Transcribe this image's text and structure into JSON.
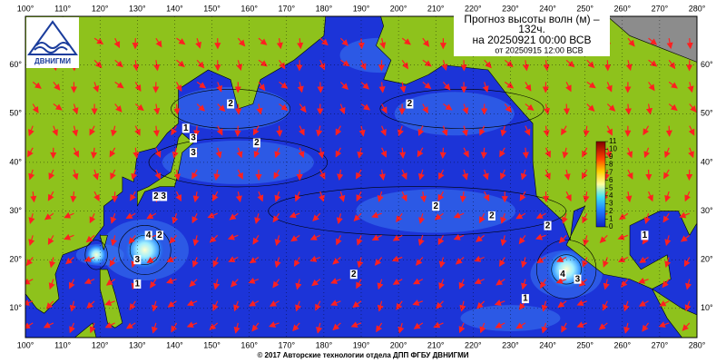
{
  "header": {
    "title_line1": "Прогноз высоты волн (м) –",
    "title_line2": "132ч.",
    "valid_time": "на 20250921 00:00 ВСВ",
    "issue_time": "от 20250915 12:00 ВСВ",
    "logo_text": "ДВНИГМИ"
  },
  "map": {
    "xlim": [
      100,
      280
    ],
    "ylim": [
      4,
      70
    ],
    "xticks": [
      {
        "value": 100,
        "label": "100°"
      },
      {
        "value": 110,
        "label": "110°"
      },
      {
        "value": 120,
        "label": "120°"
      },
      {
        "value": 130,
        "label": "130°"
      },
      {
        "value": 140,
        "label": "140°"
      },
      {
        "value": 150,
        "label": "150°"
      },
      {
        "value": 160,
        "label": "160°"
      },
      {
        "value": 170,
        "label": "170°"
      },
      {
        "value": 180,
        "label": "180°"
      },
      {
        "value": 190,
        "label": "190°"
      },
      {
        "value": 200,
        "label": "200°"
      },
      {
        "value": 210,
        "label": "210°"
      },
      {
        "value": 220,
        "label": "220°"
      },
      {
        "value": 230,
        "label": "230°"
      },
      {
        "value": 240,
        "label": "240°"
      },
      {
        "value": 250,
        "label": "250°"
      },
      {
        "value": 260,
        "label": "260°"
      },
      {
        "value": 270,
        "label": "270°"
      },
      {
        "value": 280,
        "label": "280°"
      }
    ],
    "yticks": [
      {
        "value": 10,
        "label": "10°"
      },
      {
        "value": 20,
        "label": "20°"
      },
      {
        "value": 30,
        "label": "30°"
      },
      {
        "value": 40,
        "label": "40°"
      },
      {
        "value": 50,
        "label": "50°"
      },
      {
        "value": 60,
        "label": "60°"
      }
    ],
    "colorbar_ticks": [
      0,
      1,
      2,
      3,
      4,
      5,
      6,
      7,
      8,
      9,
      10,
      11
    ],
    "contour_labels": [
      "2",
      "3",
      "2",
      "3",
      "2",
      "2",
      "1",
      "2",
      "3",
      "3",
      "4",
      "2",
      "2",
      "2",
      "4",
      "3",
      "2",
      "1",
      "1",
      "1"
    ]
  },
  "footer": {
    "copyright": "© 2017 Авторские технологии отдела ДПП ФГБУ ДВНИГМИ"
  }
}
